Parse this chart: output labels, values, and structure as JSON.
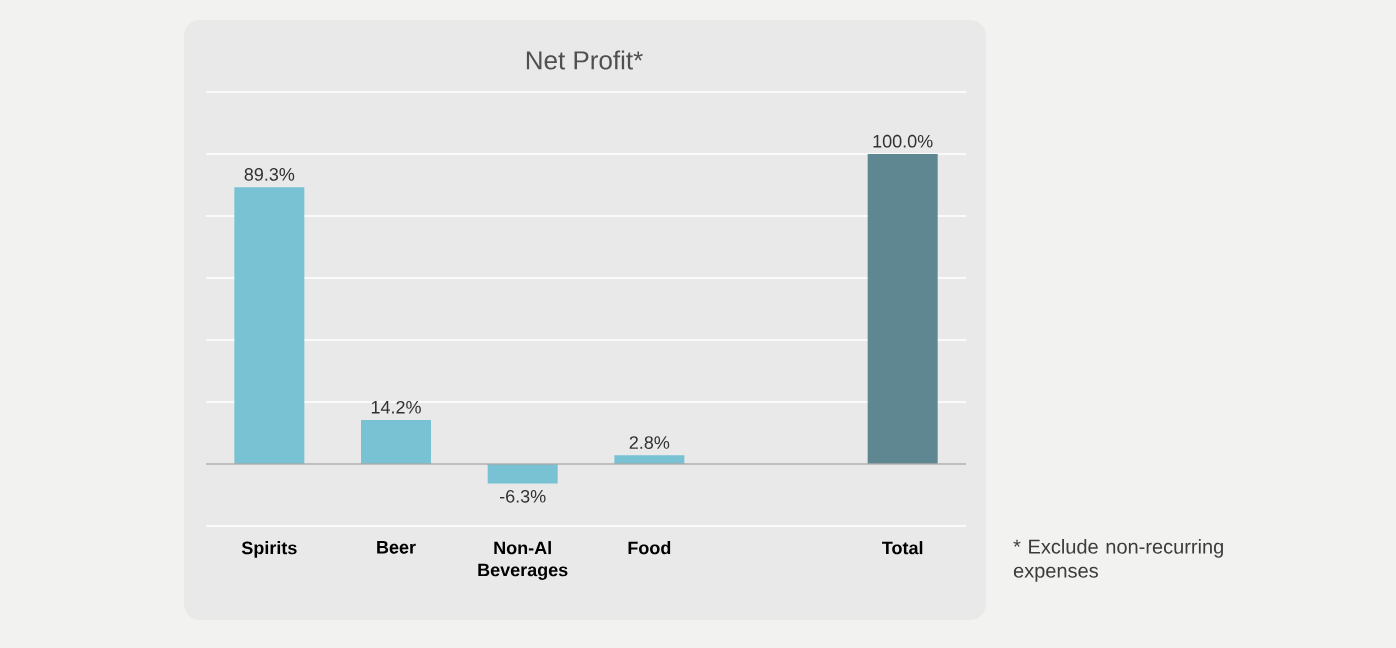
{
  "chart_data": {
    "type": "bar",
    "title": "Net Profit*",
    "categories": [
      "Spirits",
      "Beer",
      "Non-Al Beverages",
      "Food",
      null,
      "Total"
    ],
    "values": [
      89.3,
      14.2,
      -6.3,
      2.8,
      null,
      100.0
    ],
    "value_labels": [
      "89.3%",
      "14.2%",
      "-6.3%",
      "2.8%",
      null,
      "100.0%"
    ],
    "colors": [
      "#78c2d3",
      "#78c2d3",
      "#78c2d3",
      "#78c2d3",
      null,
      "#5e8791"
    ],
    "ylim": [
      -20,
      120
    ],
    "yticks": [
      {
        "value": -20,
        "label": null
      },
      {
        "value": 0,
        "label": null
      },
      {
        "value": 20,
        "label": null
      },
      {
        "value": 40,
        "label": null
      },
      {
        "value": 60,
        "label": null
      },
      {
        "value": 80,
        "label": null
      },
      {
        "value": 100,
        "label": null
      },
      {
        "value": 120,
        "label": null
      }
    ],
    "tick_labels": "x",
    "grid": "y",
    "annotations": [
      "* Exclude non-recurring expenses"
    ]
  }
}
